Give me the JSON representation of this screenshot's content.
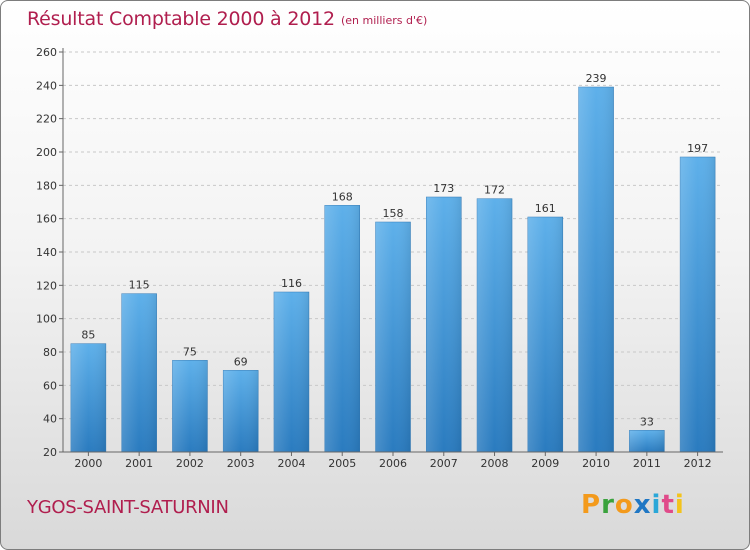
{
  "chart_data": {
    "type": "bar",
    "title": "Résultat Comptable 2000 à 2012",
    "subtitle": "(en milliers d'€)",
    "categories": [
      "2000",
      "2001",
      "2002",
      "2003",
      "2004",
      "2005",
      "2006",
      "2007",
      "2008",
      "2009",
      "2010",
      "2011",
      "2012"
    ],
    "values": [
      85,
      115,
      75,
      69,
      116,
      168,
      158,
      173,
      172,
      161,
      239,
      33,
      197
    ],
    "ylim": [
      20,
      260
    ],
    "yticks": [
      20,
      40,
      60,
      80,
      100,
      120,
      140,
      160,
      180,
      200,
      220,
      240,
      260
    ],
    "xlabel": "",
    "ylabel": "",
    "grid": "horizontal dashed"
  },
  "commune": "YGOS-SAINT-SATURNIN",
  "brand": {
    "letters": [
      "P",
      "r",
      "o",
      "x",
      "i",
      "t",
      "i"
    ],
    "colors": [
      "#f39a1c",
      "#3aa23d",
      "#f39a1c",
      "#1f77c4",
      "#2aa7d8",
      "#e04b8a",
      "#f3c31c"
    ]
  },
  "colors": {
    "bar": "#4a9cdc",
    "title": "#b01e4e"
  }
}
